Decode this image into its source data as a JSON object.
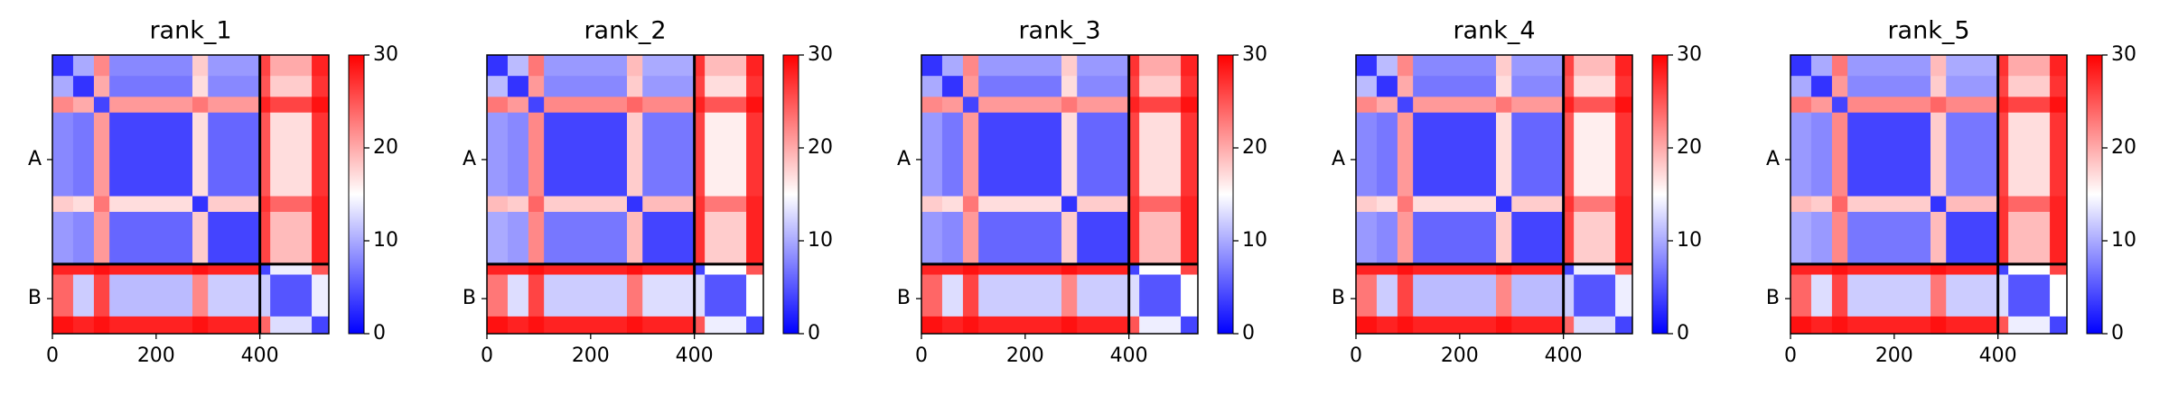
{
  "chart_data": [
    {
      "type": "heatmap",
      "title": "rank_1",
      "colormap": "bwr",
      "edges": [
        0,
        40,
        80,
        110,
        270,
        300,
        400,
        420,
        500,
        533
      ],
      "values": [
        [
          3,
          10,
          22,
          8,
          18,
          9,
          26,
          20,
          28
        ],
        [
          10,
          3,
          20,
          7,
          17,
          8,
          25,
          18,
          27
        ],
        [
          22,
          20,
          4,
          21,
          23,
          21,
          28,
          26,
          29
        ],
        [
          8,
          7,
          21,
          4,
          17,
          6,
          25,
          17,
          27
        ],
        [
          18,
          17,
          23,
          17,
          3,
          18,
          27,
          24,
          28
        ],
        [
          9,
          8,
          21,
          6,
          18,
          4,
          26,
          19,
          28
        ],
        [
          28,
          28,
          29,
          28,
          29,
          28,
          4,
          14,
          25
        ],
        [
          24,
          12,
          26,
          11,
          22,
          12,
          12,
          5,
          14
        ],
        [
          29,
          28,
          29,
          28,
          29,
          28,
          24,
          13,
          4
        ]
      ],
      "xlim": [
        0,
        533
      ],
      "xticks": [
        0,
        200,
        400
      ],
      "ylim": [
        0,
        533
      ],
      "yticks": [
        {
          "value": 200,
          "label": "A"
        },
        {
          "value": 466,
          "label": "B"
        }
      ],
      "chain_breaks": [
        400
      ],
      "clim": [
        0,
        30
      ],
      "cticks": [
        0,
        10,
        20,
        30
      ]
    },
    {
      "type": "heatmap",
      "title": "rank_2",
      "colormap": "bwr",
      "edges": [
        0,
        40,
        80,
        110,
        270,
        300,
        400,
        420,
        500,
        533
      ],
      "values": [
        [
          3,
          11,
          23,
          9,
          19,
          10,
          27,
          19,
          28
        ],
        [
          11,
          3,
          21,
          8,
          18,
          9,
          26,
          17,
          27
        ],
        [
          23,
          21,
          4,
          22,
          24,
          22,
          28,
          25,
          29
        ],
        [
          9,
          8,
          22,
          4,
          18,
          7,
          26,
          16,
          27
        ],
        [
          19,
          18,
          24,
          18,
          3,
          19,
          27,
          23,
          28
        ],
        [
          10,
          9,
          22,
          7,
          19,
          4,
          27,
          18,
          28
        ],
        [
          28,
          28,
          29,
          28,
          29,
          28,
          4,
          15,
          25
        ],
        [
          23,
          13,
          26,
          12,
          23,
          13,
          13,
          5,
          15
        ],
        [
          29,
          28,
          29,
          28,
          29,
          28,
          25,
          14,
          4
        ]
      ],
      "xlim": [
        0,
        533
      ],
      "xticks": [
        0,
        200,
        400
      ],
      "ylim": [
        0,
        533
      ],
      "yticks": [
        {
          "value": 200,
          "label": "A"
        },
        {
          "value": 466,
          "label": "B"
        }
      ],
      "chain_breaks": [
        400
      ],
      "clim": [
        0,
        30
      ],
      "cticks": [
        0,
        10,
        20,
        30
      ]
    },
    {
      "type": "heatmap",
      "title": "rank_3",
      "colormap": "bwr",
      "edges": [
        0,
        40,
        80,
        110,
        270,
        300,
        400,
        420,
        500,
        533
      ],
      "values": [
        [
          3,
          10,
          22,
          9,
          18,
          9,
          27,
          20,
          28
        ],
        [
          10,
          3,
          21,
          7,
          17,
          8,
          26,
          18,
          27
        ],
        [
          22,
          21,
          4,
          21,
          23,
          21,
          28,
          26,
          29
        ],
        [
          9,
          7,
          21,
          4,
          17,
          6,
          26,
          17,
          27
        ],
        [
          18,
          17,
          23,
          17,
          3,
          18,
          27,
          24,
          28
        ],
        [
          9,
          8,
          21,
          6,
          18,
          4,
          27,
          19,
          28
        ],
        [
          28,
          28,
          29,
          28,
          29,
          28,
          4,
          15,
          26
        ],
        [
          24,
          13,
          26,
          12,
          22,
          12,
          13,
          5,
          15
        ],
        [
          29,
          28,
          29,
          28,
          29,
          28,
          25,
          14,
          4
        ]
      ],
      "xlim": [
        0,
        533
      ],
      "xticks": [
        0,
        200,
        400
      ],
      "ylim": [
        0,
        533
      ],
      "yticks": [
        {
          "value": 200,
          "label": "A"
        },
        {
          "value": 466,
          "label": "B"
        }
      ],
      "chain_breaks": [
        400
      ],
      "clim": [
        0,
        30
      ],
      "cticks": [
        0,
        10,
        20,
        30
      ]
    },
    {
      "type": "heatmap",
      "title": "rank_4",
      "colormap": "bwr",
      "edges": [
        0,
        40,
        80,
        110,
        270,
        300,
        400,
        420,
        500,
        533
      ],
      "values": [
        [
          3,
          11,
          22,
          8,
          18,
          9,
          26,
          19,
          28
        ],
        [
          11,
          3,
          20,
          7,
          17,
          8,
          25,
          17,
          27
        ],
        [
          22,
          20,
          4,
          21,
          23,
          21,
          28,
          25,
          29
        ],
        [
          8,
          7,
          21,
          4,
          17,
          6,
          25,
          16,
          27
        ],
        [
          18,
          17,
          23,
          17,
          3,
          18,
          27,
          23,
          28
        ],
        [
          9,
          8,
          21,
          6,
          18,
          4,
          26,
          18,
          28
        ],
        [
          28,
          28,
          29,
          28,
          29,
          28,
          4,
          14,
          25
        ],
        [
          23,
          12,
          26,
          11,
          22,
          11,
          12,
          5,
          14
        ],
        [
          29,
          28,
          29,
          28,
          29,
          28,
          24,
          13,
          4
        ]
      ],
      "xlim": [
        0,
        533
      ],
      "xticks": [
        0,
        200,
        400
      ],
      "ylim": [
        0,
        533
      ],
      "yticks": [
        {
          "value": 200,
          "label": "A"
        },
        {
          "value": 466,
          "label": "B"
        }
      ],
      "chain_breaks": [
        400
      ],
      "clim": [
        0,
        30
      ],
      "cticks": [
        0,
        10,
        20,
        30
      ]
    },
    {
      "type": "heatmap",
      "title": "rank_5",
      "colormap": "bwr",
      "edges": [
        0,
        40,
        80,
        110,
        270,
        300,
        400,
        420,
        500,
        533
      ],
      "values": [
        [
          3,
          10,
          23,
          9,
          19,
          10,
          27,
          20,
          28
        ],
        [
          10,
          3,
          21,
          8,
          18,
          9,
          26,
          18,
          27
        ],
        [
          23,
          21,
          4,
          22,
          24,
          22,
          28,
          26,
          29
        ],
        [
          9,
          8,
          22,
          4,
          18,
          7,
          26,
          17,
          27
        ],
        [
          19,
          18,
          24,
          18,
          3,
          19,
          27,
          24,
          28
        ],
        [
          10,
          9,
          22,
          7,
          19,
          4,
          27,
          19,
          28
        ],
        [
          28,
          28,
          29,
          28,
          29,
          28,
          4,
          15,
          26
        ],
        [
          24,
          13,
          26,
          12,
          23,
          12,
          13,
          5,
          15
        ],
        [
          29,
          28,
          29,
          28,
          29,
          28,
          25,
          14,
          4
        ]
      ],
      "xlim": [
        0,
        533
      ],
      "xticks": [
        0,
        200,
        400
      ],
      "ylim": [
        0,
        533
      ],
      "yticks": [
        {
          "value": 200,
          "label": "A"
        },
        {
          "value": 466,
          "label": "B"
        }
      ],
      "chain_breaks": [
        400
      ],
      "clim": [
        0,
        30
      ],
      "cticks": [
        0,
        10,
        20,
        30
      ]
    }
  ]
}
